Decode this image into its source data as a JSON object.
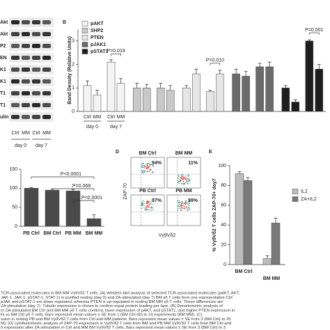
{
  "panel_a": {
    "rows": [
      "Akt",
      "Akt",
      "P2",
      "EN",
      "K1",
      "K1",
      "T1",
      "T1",
      "ulin"
    ],
    "lanes": [
      "Ctrl",
      "MM",
      "Ctrl",
      "MM"
    ],
    "days": [
      "day 0",
      "day 7"
    ]
  },
  "panel_d": {
    "panel": "D",
    "y_label": "ZAP-70",
    "x_label": "Vγ9Vδ2",
    "plots": [
      {
        "label": "BM Ctrl",
        "percent": "94%"
      },
      {
        "label": "BM MM",
        "percent": "11%"
      },
      {
        "label": "PB Ctrl",
        "percent": "97%"
      },
      {
        "label": "PB MM",
        "percent": "99%"
      }
    ]
  },
  "chart_data": [
    {
      "type": "bar",
      "panel": "B",
      "y_label": "Band Density (Relative Units)",
      "categories": [
        "Ctrl",
        "MM",
        "Ctrl",
        "MM"
      ],
      "days": [
        "day 0",
        "day 7"
      ],
      "series": [
        {
          "name": "pAKT",
          "color": "#f4f4f4",
          "values": [
            1.1,
            0.7,
            2.1,
            1.2
          ],
          "errors": [
            0.2,
            0.2,
            0.1,
            0.2
          ]
        },
        {
          "name": "SHP2",
          "color": "#c9c9c9",
          "values": [
            1.0,
            1.0,
            1.0,
            0.9
          ],
          "errors": [
            0.2,
            0.15,
            0.2,
            0.2
          ]
        },
        {
          "name": "PTEN",
          "color": "#e6e6e6",
          "values": [
            1.0,
            1.6,
            0.85,
            1.6
          ],
          "errors": [
            0.1,
            0.2,
            0.05,
            0.15
          ]
        },
        {
          "name": "pJAK1",
          "color": "#6b6b6b",
          "values": [
            1.6,
            1.5,
            1.9,
            1.9
          ],
          "errors": [
            0.2,
            0.2,
            0.15,
            0.2
          ]
        },
        {
          "name": "pSTAT1",
          "color": "#1e1e1e",
          "values": [
            1.0,
            0.4,
            3.0,
            1.8
          ],
          "errors": [
            0.1,
            0.1,
            0.05,
            0.2
          ]
        }
      ],
      "annotations": [
        "P=0.019",
        "P=0.010",
        "P=0.001"
      ],
      "ylim": [
        0,
        3.5
      ],
      "yticks": [
        0,
        1,
        2,
        3
      ]
    },
    {
      "type": "bar",
      "categories": [
        "PB Ctrl",
        "BM Ctrl",
        "PB MM",
        "BM MM"
      ],
      "values": [
        100,
        95,
        93,
        20
      ],
      "errors": [
        2,
        3,
        4,
        10
      ],
      "color": "#4a4a4a",
      "annotations": [
        "P<0.0001",
        "P=0.068",
        "P<0.0001"
      ],
      "ylim": [
        0,
        150
      ],
      "yticks": [
        0,
        50,
        100,
        150
      ]
    },
    {
      "type": "bar",
      "panel": "E",
      "y_label": "% Vγ9Vδ2 T cells ZAP-70+ day7",
      "categories": [
        "BM Ctrl",
        "BM MM"
      ],
      "series": [
        {
          "name": "IL2",
          "color": "#bdbdbd",
          "values": [
            92,
            6
          ],
          "errors": [
            2,
            3
          ]
        },
        {
          "name": "ZA+IL2",
          "color": "#7a7a7a",
          "values": [
            85,
            42
          ],
          "errors": [
            3,
            5
          ]
        }
      ],
      "ylim": [
        0,
        100
      ],
      "yticks": [
        0,
        20,
        40,
        60,
        80,
        100
      ]
    }
  ],
  "caption": [
    "TCR-associated molecules in BM MM Vγ9Vδ2 T cells. (A) Western blot analysis of selected TCR-associated molecules (pAKT, AKT,",
    "JAK-1, JAK-1, pSTAT-1, STAT-1) in purified resting (day 0) and ZA-stimulated (day 7) BM γδ T cells from one representative Ctrl",
    "pJAK and pSTAT-1 are down-regulated, whereas PTEN is up-regulated in resting BM MM γδ T cells. These differences are",
    "ZA stimulation (day 7). Tubulin expression is shown to confirm equal protein loading per lane. (B) Densitometric analysis of",
    "m ZA-stimulated BM Ctrl and BM MM γδ T cells confirms lower expression of pAKT, and pSTAT1, and higher PTEN expression in",
    "lls vs BM Ctrl γδ T cells. Bars represent mean values ± SE from 1 (BM Ctrl d0) to 14 experiments (BM MM). (C)",
    "ssion in resting PB and BM Vγ9Vδ2 T cells from Ctrl and MM patients. Bars represent mean values ± SE from 3 (BM Ctrl) to 25",
    "M). (D) cytofluorimetric analysis of ZAP-70 expression in Vγ9Vδ2 T cells from BM and PB MM Vγ9Vδ2 T cells from BM Ctrl and",
    "0 expression after ZA stimulation in Ctrl and MM BM Vγ9Vδ2 T cells. Bars represent mean values ± SE from 3 (BM Ctrl) to 3"
  ]
}
